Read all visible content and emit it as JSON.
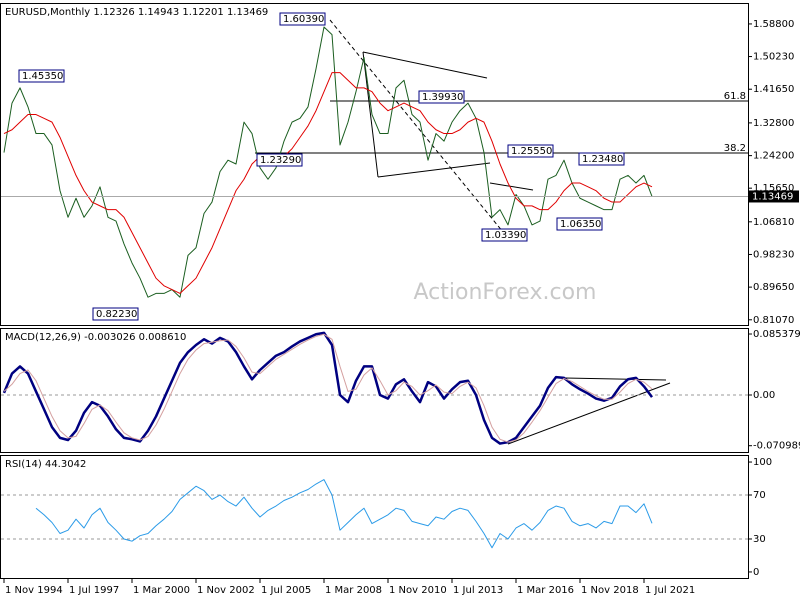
{
  "chart_data": [
    {
      "type": "line",
      "title": "EURUSD,Monthly  1.12326 1.14943 1.12201 1.13469",
      "watermark": "ActionForex.com",
      "last_price_label": "1.13469",
      "fib_labels": [
        "61.8",
        "38.2"
      ],
      "annotations": [
        "1.60390",
        "1.45350",
        "0.82230",
        "1.23290",
        "1.39930",
        "1.25550",
        "1.23480",
        "1.03390",
        "1.06350"
      ],
      "categories": [
        "1 Nov 1994",
        null,
        null,
        null,
        null,
        null,
        null,
        null,
        "1 Jul 1997",
        null,
        null,
        null,
        null,
        null,
        null,
        null,
        "1 Mar 2000",
        null,
        null,
        null,
        null,
        null,
        null,
        null,
        "1 Nov 2002",
        null,
        null,
        null,
        null,
        null,
        null,
        null,
        "1 Jul 2005",
        null,
        null,
        null,
        null,
        null,
        null,
        null,
        "1 Mar 2008",
        null,
        null,
        null,
        null,
        null,
        null,
        null,
        "1 Nov 2010",
        null,
        null,
        null,
        null,
        null,
        null,
        null,
        "1 Jul 2013",
        null,
        null,
        null,
        null,
        null,
        null,
        null,
        "1 Mar 2016",
        null,
        null,
        null,
        null,
        null,
        null,
        null,
        "1 Nov 2018",
        null,
        null,
        null,
        null,
        null,
        null,
        null,
        "1 Jul 2021",
        null
      ],
      "series": [
        {
          "color": "#1b5e20",
          "values": [
            1.25,
            1.38,
            1.42,
            1.37,
            1.3,
            1.3,
            1.27,
            1.15,
            1.08,
            1.13,
            1.08,
            1.11,
            1.16,
            1.08,
            1.07,
            1.01,
            0.96,
            0.92,
            0.87,
            0.88,
            0.88,
            0.89,
            0.87,
            0.98,
            1.0,
            1.09,
            1.12,
            1.2,
            1.23,
            1.22,
            1.33,
            1.3,
            1.21,
            1.18,
            1.21,
            1.28,
            1.33,
            1.34,
            1.37,
            1.47,
            1.58,
            1.56,
            1.27,
            1.33,
            1.41,
            1.5,
            1.35,
            1.3,
            1.3,
            1.42,
            1.44,
            1.35,
            1.33,
            1.23,
            1.3,
            1.28,
            1.33,
            1.36,
            1.38,
            1.34,
            1.25,
            1.08,
            1.1,
            1.06,
            1.14,
            1.11,
            1.06,
            1.07,
            1.18,
            1.19,
            1.23,
            1.17,
            1.13,
            1.12,
            1.11,
            1.1,
            1.1,
            1.18,
            1.19,
            1.17,
            1.19,
            1.13469
          ]
        },
        {
          "color": "#e00000",
          "values": [
            1.3,
            1.31,
            1.33,
            1.35,
            1.35,
            1.34,
            1.33,
            1.29,
            1.24,
            1.19,
            1.15,
            1.12,
            1.11,
            1.1,
            1.1,
            1.08,
            1.04,
            1.0,
            0.96,
            0.92,
            0.9,
            0.89,
            0.88,
            0.9,
            0.92,
            0.96,
            1.0,
            1.05,
            1.1,
            1.15,
            1.18,
            1.22,
            1.24,
            1.24,
            1.23,
            1.24,
            1.26,
            1.29,
            1.32,
            1.36,
            1.41,
            1.46,
            1.46,
            1.44,
            1.42,
            1.42,
            1.41,
            1.38,
            1.36,
            1.37,
            1.38,
            1.37,
            1.36,
            1.33,
            1.31,
            1.3,
            1.3,
            1.31,
            1.33,
            1.34,
            1.33,
            1.28,
            1.22,
            1.17,
            1.13,
            1.11,
            1.11,
            1.1,
            1.1,
            1.12,
            1.15,
            1.17,
            1.17,
            1.16,
            1.15,
            1.13,
            1.12,
            1.12,
            1.14,
            1.16,
            1.17,
            1.16
          ]
        }
      ],
      "ylim": [
        0.797,
        1.643
      ],
      "yticks": [
        {
          "value": 1.588,
          "label": "1.58800"
        },
        {
          "value": 1.5023,
          "label": "1.50230"
        },
        {
          "value": 1.4165,
          "label": "1.41650"
        },
        {
          "value": 1.328,
          "label": "1.32800"
        },
        {
          "value": 1.242,
          "label": "1.24200"
        },
        {
          "value": 1.1565,
          "label": "1.15650"
        },
        {
          "value": 1.0681,
          "label": "1.06810"
        },
        {
          "value": 0.9823,
          "label": "0.98230"
        },
        {
          "value": 0.8965,
          "label": "0.89650"
        },
        {
          "value": 0.8107,
          "label": "0.81070"
        }
      ]
    },
    {
      "type": "line",
      "title": "MACD(12,26,9) -0.003026 0.008610",
      "series": [
        {
          "color": "#000080",
          "values": [
            0.003,
            0.03,
            0.04,
            0.03,
            0.005,
            -0.02,
            -0.045,
            -0.06,
            -0.063,
            -0.05,
            -0.025,
            -0.01,
            -0.015,
            -0.03,
            -0.048,
            -0.06,
            -0.062,
            -0.065,
            -0.05,
            -0.03,
            -0.005,
            0.02,
            0.045,
            0.06,
            0.07,
            0.078,
            0.072,
            0.08,
            0.075,
            0.06,
            0.04,
            0.022,
            0.035,
            0.045,
            0.055,
            0.06,
            0.068,
            0.075,
            0.08,
            0.085,
            0.087,
            0.07,
            0.0,
            -0.01,
            0.02,
            0.04,
            0.04,
            0.0,
            -0.005,
            0.015,
            0.022,
            0.005,
            -0.01,
            0.018,
            0.012,
            -0.005,
            0.008,
            0.018,
            0.02,
            0.0,
            -0.035,
            -0.06,
            -0.068,
            -0.066,
            -0.06,
            -0.045,
            -0.03,
            -0.015,
            0.01,
            0.025,
            0.024,
            0.015,
            0.008,
            0.002,
            -0.005,
            -0.008,
            -0.004,
            0.012,
            0.022,
            0.024,
            0.012,
            -0.003026
          ]
        },
        {
          "color": "#d4a0a0",
          "values": [
            0.005,
            0.015,
            0.03,
            0.035,
            0.02,
            -0.005,
            -0.03,
            -0.05,
            -0.06,
            -0.058,
            -0.04,
            -0.02,
            -0.014,
            -0.022,
            -0.038,
            -0.053,
            -0.06,
            -0.063,
            -0.058,
            -0.042,
            -0.02,
            0.005,
            0.03,
            0.05,
            0.063,
            0.072,
            0.074,
            0.076,
            0.077,
            0.068,
            0.052,
            0.032,
            0.03,
            0.04,
            0.05,
            0.057,
            0.064,
            0.071,
            0.077,
            0.082,
            0.085,
            0.078,
            0.04,
            0.005,
            0.008,
            0.028,
            0.038,
            0.02,
            0.0,
            0.006,
            0.018,
            0.012,
            0.0,
            0.006,
            0.014,
            0.004,
            0.002,
            0.012,
            0.018,
            0.01,
            -0.015,
            -0.045,
            -0.062,
            -0.066,
            -0.063,
            -0.053,
            -0.038,
            -0.022,
            -0.003,
            0.016,
            0.023,
            0.019,
            0.012,
            0.005,
            -0.001,
            -0.006,
            -0.006,
            0.004,
            0.016,
            0.022,
            0.018,
            0.00861
          ]
        }
      ],
      "ylim": [
        -0.0798,
        0.0938
      ],
      "yticks": [
        0.085379,
        {
          "value": 0,
          "label": "0.00"
        },
        -0.070989
      ],
      "levels": [
        0
      ]
    },
    {
      "type": "line",
      "title": "RSI(14) 44.3042",
      "series": [
        {
          "color": "#2b9be8",
          "values": [
            null,
            null,
            null,
            null,
            58,
            52,
            45,
            35,
            38,
            48,
            40,
            52,
            58,
            45,
            38,
            30,
            28,
            33,
            35,
            42,
            48,
            55,
            66,
            72,
            78,
            74,
            66,
            70,
            64,
            60,
            68,
            58,
            50,
            56,
            60,
            65,
            68,
            72,
            75,
            80,
            84,
            70,
            38,
            45,
            52,
            58,
            44,
            48,
            52,
            58,
            56,
            46,
            44,
            42,
            50,
            48,
            55,
            58,
            56,
            46,
            35,
            22,
            35,
            30,
            40,
            44,
            38,
            45,
            56,
            60,
            58,
            46,
            42,
            44,
            40,
            46,
            44,
            60,
            60,
            54,
            62,
            44.3042
          ]
        }
      ],
      "ylim": [
        -5.5,
        106.4
      ],
      "yticks": [
        100,
        70,
        30,
        0
      ],
      "levels": [
        70,
        30
      ]
    }
  ]
}
